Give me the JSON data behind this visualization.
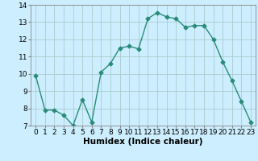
{
  "x": [
    0,
    1,
    2,
    3,
    4,
    5,
    6,
    7,
    8,
    9,
    10,
    11,
    12,
    13,
    14,
    15,
    16,
    17,
    18,
    19,
    20,
    21,
    22,
    23
  ],
  "y": [
    9.9,
    7.9,
    7.9,
    7.6,
    7.0,
    8.5,
    7.2,
    10.1,
    10.6,
    11.5,
    11.6,
    11.45,
    13.2,
    13.55,
    13.3,
    13.2,
    12.7,
    12.8,
    12.8,
    12.0,
    10.7,
    9.6,
    8.4,
    7.2
  ],
  "xlabel": "Humidex (Indice chaleur)",
  "ylim": [
    7,
    14
  ],
  "xlim": [
    -0.5,
    23.5
  ],
  "yticks": [
    7,
    8,
    9,
    10,
    11,
    12,
    13,
    14
  ],
  "xticks": [
    0,
    1,
    2,
    3,
    4,
    5,
    6,
    7,
    8,
    9,
    10,
    11,
    12,
    13,
    14,
    15,
    16,
    17,
    18,
    19,
    20,
    21,
    22,
    23
  ],
  "line_color": "#2a8c78",
  "marker": "D",
  "marker_size": 2.5,
  "bg_color": "#cceeff",
  "grid_color": "#aacccc",
  "xlabel_fontsize": 7.5,
  "tick_fontsize": 6.5,
  "linewidth": 1.0
}
